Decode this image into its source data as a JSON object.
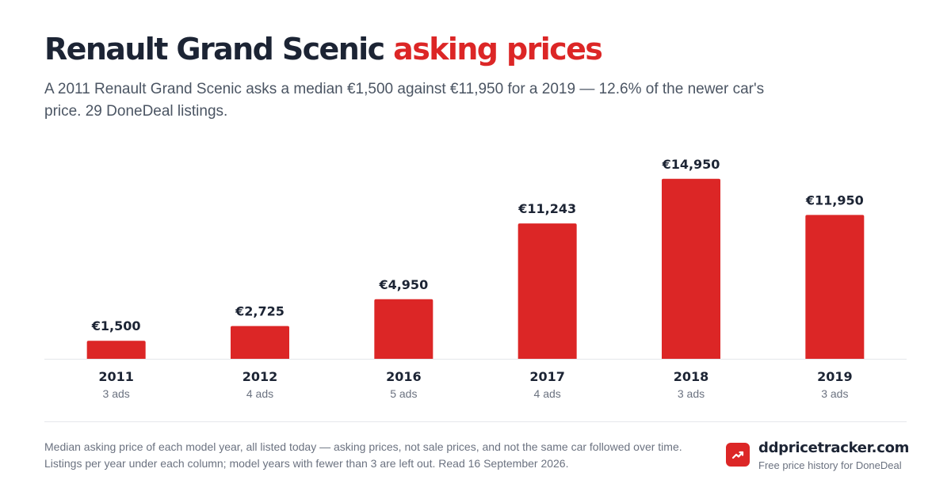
{
  "header": {
    "title_main": "Renault Grand Scenic",
    "title_accent": "asking prices",
    "subtitle": "A 2011 Renault Grand Scenic asks a median €1,500 against €11,950 for a 2019 — 12.6% of the newer car's price. 29 DoneDeal listings."
  },
  "chart_data": {
    "type": "bar",
    "categories": [
      "2011",
      "2012",
      "2016",
      "2017",
      "2018",
      "2019"
    ],
    "values": [
      1500,
      2725,
      4950,
      11243,
      14950,
      11950
    ],
    "value_labels": [
      "€1,500",
      "€2,725",
      "€4,950",
      "€11,243",
      "€14,950",
      "€11,950"
    ],
    "sublabels": [
      "3 ads",
      "4 ads",
      "5 ads",
      "4 ads",
      "3 ads",
      "3 ads"
    ],
    "ylim": [
      0,
      15000
    ],
    "grid": false,
    "bar_color": "#dc2626"
  },
  "footer": {
    "note": "Median asking price of each model year, all listed today — asking prices, not sale prices, and not the same car followed over time. Listings per year under each column; model years with fewer than 3 are left out. Read 16 September 2026.",
    "brand_name": "ddpricetracker.com",
    "brand_tagline": "Free price history for DoneDeal",
    "logo_icon": "trend-up-icon"
  },
  "colors": {
    "accent": "#dc2626",
    "text": "#1c2434",
    "muted": "#6b7280"
  }
}
